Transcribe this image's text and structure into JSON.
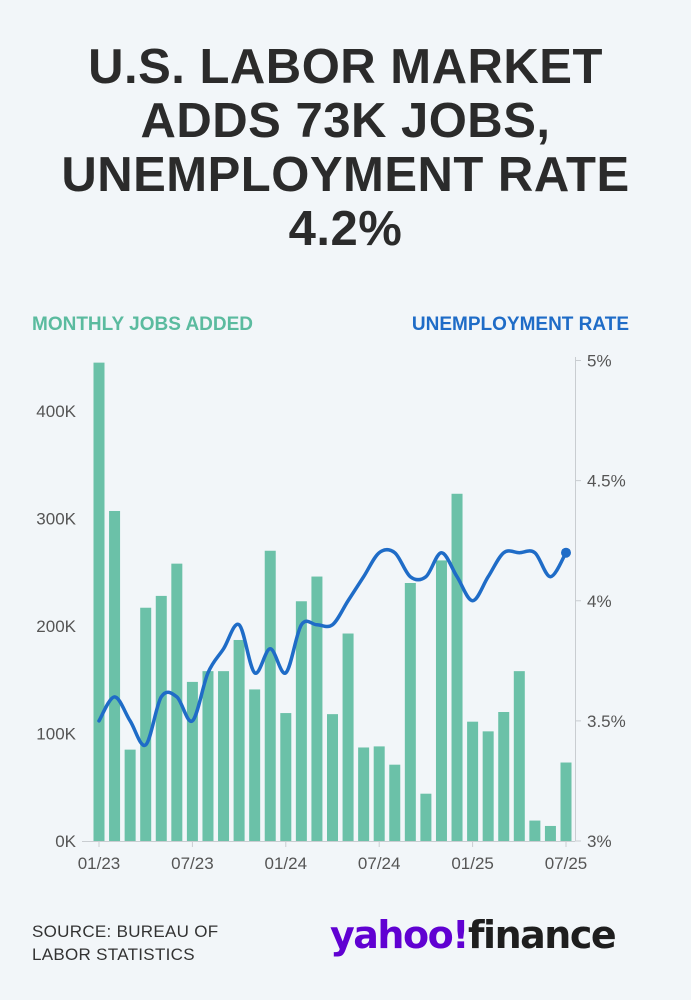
{
  "header": {
    "title_lines": [
      "U.S. LABOR MARKET",
      "ADDS 73K JOBS,",
      "UNEMPLOYMENT RATE",
      "4.2%"
    ]
  },
  "footer": {
    "source_lines": [
      "SOURCE: BUREAU OF",
      "LABOR STATISTICS"
    ],
    "logo_yahoo": "yahoo!",
    "logo_finance": "finance"
  },
  "colors": {
    "bars": "#6bc1a8",
    "line": "#1f6cc7",
    "jobs_legend": "#5bbb9f",
    "rate_legend": "#1f6cc7",
    "axis_text": "#555555"
  },
  "chart_data": {
    "type": "bar+line",
    "categories": [
      "01/23",
      "02/23",
      "03/23",
      "04/23",
      "05/23",
      "06/23",
      "07/23",
      "08/23",
      "09/23",
      "10/23",
      "11/23",
      "12/23",
      "01/24",
      "02/24",
      "03/24",
      "04/24",
      "05/24",
      "06/24",
      "07/24",
      "08/24",
      "09/24",
      "10/24",
      "11/24",
      "12/24",
      "01/25",
      "02/25",
      "03/25",
      "04/25",
      "05/25",
      "06/25",
      "07/25"
    ],
    "x_tick_labels": [
      "01/23",
      "07/23",
      "01/24",
      "07/24",
      "01/25",
      "07/25"
    ],
    "x_tick_indices": [
      0,
      6,
      12,
      18,
      24,
      30
    ],
    "series": [
      {
        "name": "MONTHLY JOBS ADDED",
        "type": "bar",
        "axis": "left",
        "values": [
          445000,
          307000,
          85000,
          217000,
          228000,
          258000,
          148000,
          158000,
          158000,
          187000,
          141000,
          270000,
          119000,
          223000,
          246000,
          118000,
          193000,
          87000,
          88000,
          71000,
          240000,
          44000,
          261000,
          323000,
          111000,
          102000,
          120000,
          158000,
          19000,
          14000,
          73000
        ]
      },
      {
        "name": "UNEMPLOYMENT RATE",
        "type": "line",
        "axis": "right",
        "values": [
          3.5,
          3.6,
          3.5,
          3.4,
          3.6,
          3.6,
          3.5,
          3.7,
          3.8,
          3.9,
          3.7,
          3.8,
          3.7,
          3.9,
          3.9,
          3.9,
          4.0,
          4.1,
          4.2,
          4.2,
          4.1,
          4.1,
          4.2,
          4.1,
          4.0,
          4.1,
          4.2,
          4.2,
          4.2,
          4.1,
          4.2
        ]
      }
    ],
    "left_axis": {
      "label": "MONTHLY JOBS ADDED",
      "ylim": [
        0,
        450000
      ],
      "ticks": [
        0,
        100000,
        200000,
        300000,
        400000
      ],
      "tick_labels": [
        "0K",
        "100K",
        "200K",
        "300K",
        "400K"
      ]
    },
    "right_axis": {
      "label": "UNEMPLOYMENT RATE",
      "ylim": [
        3,
        5
      ],
      "ticks": [
        3,
        3.5,
        4,
        4.5,
        5
      ],
      "tick_labels": [
        "3%",
        "3.5%",
        "4%",
        "4.5%",
        "5%"
      ]
    },
    "grid": false,
    "legend": "top"
  }
}
